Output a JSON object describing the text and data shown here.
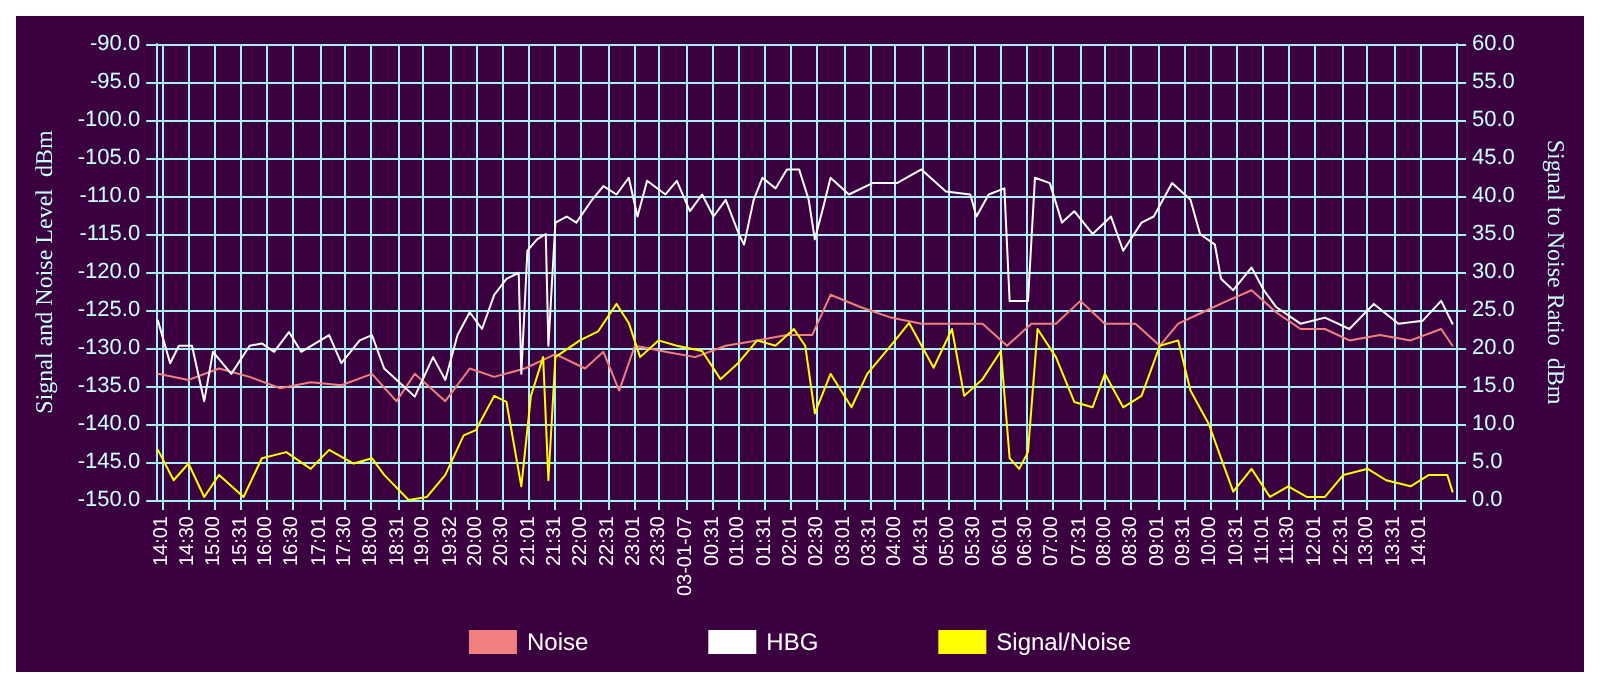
{
  "chart_data": {
    "type": "line",
    "ylabel": "Signal and Noise Level  dBm",
    "y2label": "Signal to Noise Ratio  dBm",
    "grid": true,
    "legend": "bottom",
    "marker": "none",
    "line_style": "solid",
    "xlim": [
      "--01-06T13:54",
      "--01-07T14:42"
    ],
    "xticks": [
      {
        "value": "--01-06T14:01",
        "label": "14:01"
      },
      {
        "value": "--01-06T14:30",
        "label": "14:30"
      },
      {
        "value": "--01-06T15:00",
        "label": "15:00"
      },
      {
        "value": "--01-06T15:31",
        "label": "15:31"
      },
      {
        "value": "--01-06T16:00",
        "label": "16:00"
      },
      {
        "value": "--01-06T16:30",
        "label": "16:30"
      },
      {
        "value": "--01-06T17:01",
        "label": "17:01"
      },
      {
        "value": "--01-06T17:30",
        "label": "17:30"
      },
      {
        "value": "--01-06T18:00",
        "label": "18:00"
      },
      {
        "value": "--01-06T18:31",
        "label": "18:31"
      },
      {
        "value": "--01-06T19:00",
        "label": "19:00"
      },
      {
        "value": "--01-06T19:32",
        "label": "19:32"
      },
      {
        "value": "--01-06T20:00",
        "label": "20:00"
      },
      {
        "value": "--01-06T20:30",
        "label": "20:30"
      },
      {
        "value": "--01-06T21:01",
        "label": "21:01"
      },
      {
        "value": "--01-06T21:31",
        "label": "21:31"
      },
      {
        "value": "--01-06T22:00",
        "label": "22:00"
      },
      {
        "value": "--01-06T22:31",
        "label": "22:31"
      },
      {
        "value": "--01-06T23:01",
        "label": "23:01"
      },
      {
        "value": "--01-06T23:30",
        "label": "23:30"
      },
      {
        "value": "--01-07T00:00",
        "label": "03-01-07"
      },
      {
        "value": "--01-07T00:31",
        "label": "00:31"
      },
      {
        "value": "--01-07T01:00",
        "label": "01:00"
      },
      {
        "value": "--01-07T01:31",
        "label": "01:31"
      },
      {
        "value": "--01-07T02:01",
        "label": "02:01"
      },
      {
        "value": "--01-07T02:30",
        "label": "02:30"
      },
      {
        "value": "--01-07T03:01",
        "label": "03:01"
      },
      {
        "value": "--01-07T03:31",
        "label": "03:31"
      },
      {
        "value": "--01-07T04:00",
        "label": "04:00"
      },
      {
        "value": "--01-07T04:31",
        "label": "04:31"
      },
      {
        "value": "--01-07T05:00",
        "label": "05:00"
      },
      {
        "value": "--01-07T05:30",
        "label": "05:30"
      },
      {
        "value": "--01-07T06:01",
        "label": "06:01"
      },
      {
        "value": "--01-07T06:30",
        "label": "06:30"
      },
      {
        "value": "--01-07T07:00",
        "label": "07:00"
      },
      {
        "value": "--01-07T07:31",
        "label": "07:31"
      },
      {
        "value": "--01-07T08:00",
        "label": "08:00"
      },
      {
        "value": "--01-07T08:30",
        "label": "08:30"
      },
      {
        "value": "--01-07T09:01",
        "label": "09:01"
      },
      {
        "value": "--01-07T09:31",
        "label": "09:31"
      },
      {
        "value": "--01-07T10:00",
        "label": "10:00"
      },
      {
        "value": "--01-07T10:31",
        "label": "10:31"
      },
      {
        "value": "--01-07T11:01",
        "label": "11:01"
      },
      {
        "value": "--01-07T11:30",
        "label": "11:30"
      },
      {
        "value": "--01-07T12:01",
        "label": "12:01"
      },
      {
        "value": "--01-07T12:31",
        "label": "12:31"
      },
      {
        "value": "--01-07T13:00",
        "label": "13:00"
      },
      {
        "value": "--01-07T13:31",
        "label": "13:31"
      },
      {
        "value": "--01-07T14:01",
        "label": "14:01"
      }
    ],
    "ylim": [
      -150,
      -90
    ],
    "yticks": [
      {
        "value": -150,
        "label": "-150.0"
      },
      {
        "value": -145,
        "label": "-145.0"
      },
      {
        "value": -140,
        "label": "-140.0"
      },
      {
        "value": -135,
        "label": "-135.0"
      },
      {
        "value": -130,
        "label": "-130.0"
      },
      {
        "value": -125,
        "label": "-125.0"
      },
      {
        "value": -120,
        "label": "-120.0"
      },
      {
        "value": -115,
        "label": "-115.0"
      },
      {
        "value": -110,
        "label": "-110.0"
      },
      {
        "value": -105,
        "label": "-105.0"
      },
      {
        "value": -100,
        "label": "-100.0"
      },
      {
        "value": -95,
        "label": "-95.0"
      },
      {
        "value": -90,
        "label": "-90.0"
      }
    ],
    "y2lim": [
      0,
      60
    ],
    "y2ticks": [
      {
        "value": 0,
        "label": "0.0"
      },
      {
        "value": 5,
        "label": "5.0"
      },
      {
        "value": 10,
        "label": "10.0"
      },
      {
        "value": 15,
        "label": "15.0"
      },
      {
        "value": 20,
        "label": "20.0"
      },
      {
        "value": 25,
        "label": "25.0"
      },
      {
        "value": 30,
        "label": "30.0"
      },
      {
        "value": 35,
        "label": "35.0"
      },
      {
        "value": 40,
        "label": "40.0"
      },
      {
        "value": 45,
        "label": "45.0"
      },
      {
        "value": 50,
        "label": "50.0"
      },
      {
        "value": 55,
        "label": "55.0"
      },
      {
        "value": 60,
        "label": "60.0"
      }
    ],
    "series": [
      {
        "name": "Noise",
        "color": "#f08080",
        "x": [
          "--01-06T13:56",
          "--01-06T14:31",
          "--01-06T15:06",
          "--01-06T15:41",
          "--01-06T16:16",
          "--01-06T16:51",
          "--01-06T17:26",
          "--01-06T18:01",
          "--01-06T18:29",
          "--01-06T18:50",
          "--01-06T19:25",
          "--01-06T19:53",
          "--01-06T20:21",
          "--01-06T20:56",
          "--01-06T21:31",
          "--01-06T22:05",
          "--01-06T22:26",
          "--01-06T22:44",
          "--01-06T23:02",
          "--01-06T23:37",
          "--01-07T00:11",
          "--01-07T00:46",
          "--01-07T01:22",
          "--01-07T01:56",
          "--01-07T02:25",
          "--01-07T02:46",
          "--01-07T03:20",
          "--01-07T03:55",
          "--01-07T04:30",
          "--01-07T05:05",
          "--01-07T05:40",
          "--01-07T06:08",
          "--01-07T06:36",
          "--01-07T07:04",
          "--01-07T07:32",
          "--01-07T08:00",
          "--01-07T08:35",
          "--01-07T09:03",
          "--01-07T09:24",
          "--01-07T09:52",
          "--01-07T10:20",
          "--01-07T10:48",
          "--01-07T11:16",
          "--01-07T11:44",
          "--01-07T12:12",
          "--01-07T12:40",
          "--01-07T13:15",
          "--01-07T13:50",
          "--01-07T14:25",
          "--01-07T14:38"
        ],
        "values": [
          -133.4,
          -134.2,
          -132.7,
          -133.8,
          -135.3,
          -134.5,
          -134.9,
          -133.4,
          -137,
          -133.4,
          -137,
          -132.7,
          -133.8,
          -132.7,
          -130.8,
          -132.7,
          -130.5,
          -135.6,
          -129.7,
          -130.5,
          -131.2,
          -129.7,
          -129,
          -128.3,
          -128.3,
          -123,
          -124.6,
          -126,
          -126.8,
          -126.8,
          -126.8,
          -129.7,
          -126.8,
          -126.8,
          -123.8,
          -126.8,
          -126.8,
          -129.7,
          -126.8,
          -125.3,
          -123.8,
          -122.4,
          -125.3,
          -127.5,
          -127.5,
          -129,
          -128.3,
          -129,
          -127.5,
          -129.7
        ]
      },
      {
        "name": "HBG",
        "color": "#ffffff",
        "x": [
          "--01-06T13:56",
          "--01-06T14:10",
          "--01-06T14:20",
          "--01-06T14:35",
          "--01-06T14:49",
          "--01-06T14:59",
          "--01-06T15:20",
          "--01-06T15:41",
          "--01-06T15:55",
          "--01-06T16:09",
          "--01-06T16:26",
          "--01-06T16:40",
          "--01-06T17:12",
          "--01-06T17:26",
          "--01-06T17:47",
          "--01-06T18:01",
          "--01-06T18:15",
          "--01-06T18:36",
          "--01-06T18:50",
          "--01-06T19:11",
          "--01-06T19:25",
          "--01-06T19:39",
          "--01-06T19:53",
          "--01-06T20:07",
          "--01-06T20:21",
          "--01-06T20:35",
          "--01-06T20:49",
          "--01-06T20:52",
          "--01-06T20:59",
          "--01-06T21:10",
          "--01-06T21:20",
          "--01-06T21:23",
          "--01-06T21:31",
          "--01-06T21:44",
          "--01-06T21:55",
          "--01-06T22:13",
          "--01-06T22:26",
          "--01-06T22:41",
          "--01-06T22:55",
          "--01-06T23:05",
          "--01-06T23:16",
          "--01-06T23:37",
          "--01-06T23:50",
          "--01-07T00:05",
          "--01-07T00:19",
          "--01-07T00:32",
          "--01-07T00:46",
          "--01-07T01:01",
          "--01-07T01:07",
          "--01-07T01:18",
          "--01-07T01:28",
          "--01-07T01:43",
          "--01-07T01:56",
          "--01-07T02:10",
          "--01-07T02:21",
          "--01-07T02:28",
          "--01-07T02:38",
          "--01-07T02:46",
          "--01-07T03:07",
          "--01-07T03:34",
          "--01-07T04:02",
          "--01-07T04:30",
          "--01-07T04:58",
          "--01-07T05:26",
          "--01-07T05:33",
          "--01-07T05:47",
          "--01-07T06:05",
          "--01-07T06:11",
          "--01-07T06:22",
          "--01-07T06:32",
          "--01-07T06:40",
          "--01-07T06:57",
          "--01-07T07:11",
          "--01-07T07:25",
          "--01-07T07:46",
          "--01-07T08:07",
          "--01-07T08:21",
          "--01-07T08:42",
          "--01-07T08:56",
          "--01-07T09:17",
          "--01-07T09:38",
          "--01-07T09:49",
          "--01-07T10:06",
          "--01-07T10:13",
          "--01-07T10:27",
          "--01-07T10:48",
          "--01-07T11:02",
          "--01-07T11:16",
          "--01-07T11:44",
          "--01-07T12:12",
          "--01-07T12:40",
          "--01-07T13:08",
          "--01-07T13:36",
          "--01-07T14:04",
          "--01-07T14:25",
          "--01-07T14:38"
        ],
        "values": [
          -126.4,
          -132,
          -129.7,
          -129.7,
          -137,
          -130.5,
          -133.4,
          -129.7,
          -129.4,
          -130.5,
          -127.9,
          -130.5,
          -128.3,
          -132,
          -129,
          -128.3,
          -132.7,
          -134.9,
          -136.4,
          -131.2,
          -134.2,
          -128.3,
          -125.3,
          -127.5,
          -123,
          -120.9,
          -120.1,
          -133.4,
          -117.2,
          -115.7,
          -115,
          -129.7,
          -113.5,
          -112.7,
          -113.5,
          -110.5,
          -108.7,
          -109.8,
          -107.6,
          -112.7,
          -108,
          -109.8,
          -108,
          -112,
          -109.8,
          -112.7,
          -110.5,
          -115,
          -116.4,
          -110.5,
          -107.6,
          -109,
          -106.5,
          -106.5,
          -110.5,
          -115.7,
          -111.3,
          -107.6,
          -109.8,
          -108.3,
          -108.3,
          -106.5,
          -109.4,
          -109.8,
          -112.7,
          -109.8,
          -109,
          -123.8,
          -123.8,
          -123.8,
          -107.6,
          -108.3,
          -113.5,
          -112,
          -115,
          -112.7,
          -117.2,
          -113.5,
          -112.7,
          -108.3,
          -110.5,
          -115,
          -116.4,
          -120.9,
          -122.4,
          -119.4,
          -122.4,
          -124.6,
          -126.8,
          -126,
          -127.5,
          -124.2,
          -126.8,
          -126.4,
          -123.8,
          -126.8
        ]
      },
      {
        "name": "Signal/Noise",
        "color": "#ffff00",
        "axis": "y2",
        "x": [
          "--01-06T13:56",
          "--01-06T14:14",
          "--01-06T14:31",
          "--01-06T14:49",
          "--01-06T15:06",
          "--01-06T15:34",
          "--01-06T15:55",
          "--01-06T16:23",
          "--01-06T16:51",
          "--01-06T17:12",
          "--01-06T17:40",
          "--01-06T18:01",
          "--01-06T18:15",
          "--01-06T18:43",
          "--01-06T19:04",
          "--01-06T19:25",
          "--01-06T19:46",
          "--01-06T20:00",
          "--01-06T20:21",
          "--01-06T20:35",
          "--01-06T20:52",
          "--01-06T21:03",
          "--01-06T21:17",
          "--01-06T21:23",
          "--01-06T21:31",
          "--01-06T21:59",
          "--01-06T22:20",
          "--01-06T22:41",
          "--01-06T22:55",
          "--01-06T23:08",
          "--01-06T23:29",
          "--01-06T23:50",
          "--01-07T00:19",
          "--01-07T00:40",
          "--01-07T01:01",
          "--01-07T01:22",
          "--01-07T01:43",
          "--01-07T02:04",
          "--01-07T02:17",
          "--01-07T02:28",
          "--01-07T02:46",
          "--01-07T03:10",
          "--01-07T03:28",
          "--01-07T03:55",
          "--01-07T04:16",
          "--01-07T04:44",
          "--01-07T05:05",
          "--01-07T05:19",
          "--01-07T05:40",
          "--01-07T06:01",
          "--01-07T06:11",
          "--01-07T06:22",
          "--01-07T06:32",
          "--01-07T06:43",
          "--01-07T07:04",
          "--01-07T07:25",
          "--01-07T07:46",
          "--01-07T08:00",
          "--01-07T08:21",
          "--01-07T08:42",
          "--01-07T09:03",
          "--01-07T09:24",
          "--01-07T09:38",
          "--01-07T09:59",
          "--01-07T10:13",
          "--01-07T10:27",
          "--01-07T10:48",
          "--01-07T11:09",
          "--01-07T11:30",
          "--01-07T11:51",
          "--01-07T12:12",
          "--01-07T12:33",
          "--01-07T13:01",
          "--01-07T13:22",
          "--01-07T13:50",
          "--01-07T14:11",
          "--01-07T14:32",
          "--01-07T14:38"
        ],
        "values": [
          6.6,
          2.6,
          4.8,
          0.4,
          3.3,
          0.4,
          5.5,
          6.3,
          4.1,
          6.6,
          4.8,
          5.5,
          3.3,
          0,
          0.4,
          3.3,
          8.5,
          9.2,
          13.7,
          12.9,
          1.8,
          13.7,
          18.8,
          2.6,
          18.8,
          21,
          22.2,
          25.8,
          23.3,
          18.8,
          21,
          20.3,
          19.6,
          15.9,
          18.1,
          21,
          20.3,
          22.5,
          20.3,
          11.4,
          16.6,
          12.2,
          16.6,
          20.3,
          23.3,
          17.4,
          22.5,
          13.7,
          15.9,
          19.6,
          5.5,
          4.1,
          6.3,
          22.5,
          18.8,
          12.9,
          12.2,
          16.6,
          12.2,
          13.7,
          20.3,
          21,
          14.4,
          10,
          5.5,
          1.1,
          4.1,
          0.4,
          1.8,
          0.4,
          0.4,
          3.3,
          4.1,
          2.6,
          1.8,
          3.3,
          3.3,
          1.1
        ]
      }
    ]
  }
}
